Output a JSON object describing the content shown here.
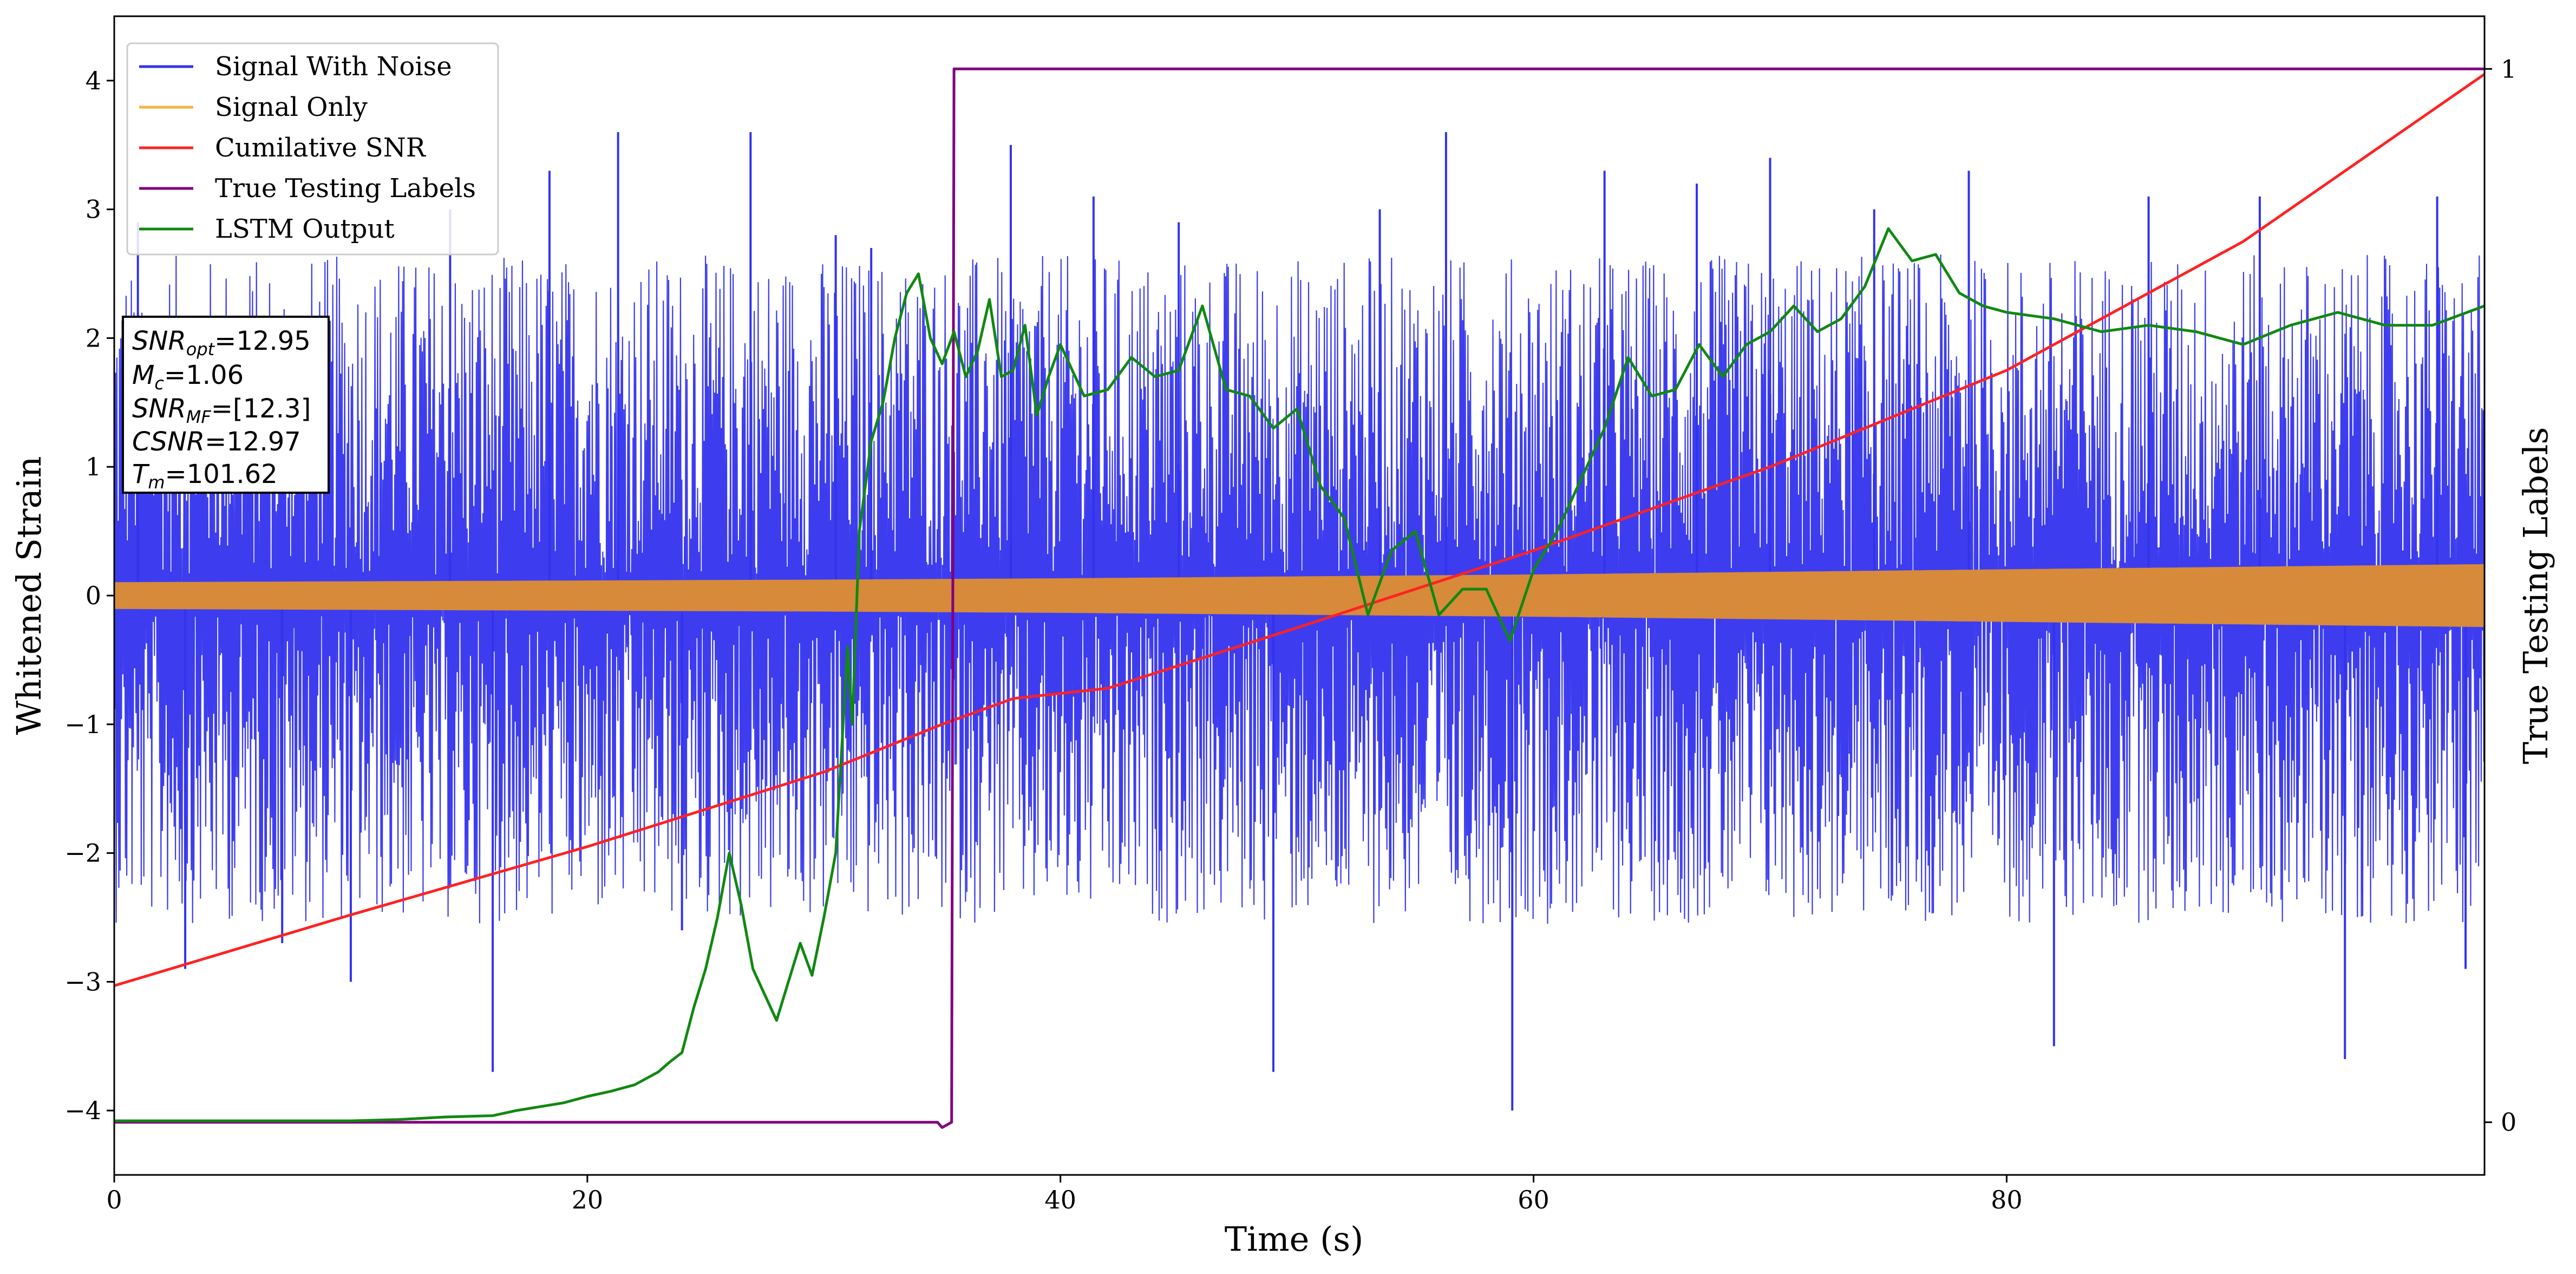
{
  "chart_data": {
    "type": "line",
    "xlabel": "Time (s)",
    "ylabel": "Whitened Strain",
    "y2label": "True Testing Labels",
    "xlim": [
      0,
      100.2
    ],
    "ylim": [
      -4.5,
      4.5
    ],
    "y2lim": [
      -0.05,
      1.05
    ],
    "xticks": [
      0,
      20,
      40,
      60,
      80
    ],
    "yticks": [
      -4,
      -3,
      -2,
      -1,
      0,
      1,
      2,
      3,
      4
    ],
    "y2ticks": [
      0,
      1
    ],
    "grid": false,
    "legend_placement": "top-left",
    "colors": {
      "signal_with_noise": "#3333ee",
      "signal_only": "#d68a3a",
      "cumulative_snr": "#ff2222",
      "true_labels": "#800080",
      "lstm": "#118811"
    },
    "series": [
      {
        "name": "Signal With Noise",
        "axis": "left",
        "description_band": "dense noise spanning roughly -2.5 to 2.5 with spikes to about ±3.7",
        "envelope": {
          "x": [
            0,
            100.2
          ],
          "lower": [
            -2.4,
            -2.4
          ],
          "upper": [
            2.5,
            2.5
          ]
        },
        "spikes": [
          [
            1.0,
            2.9
          ],
          [
            3.0,
            -2.9
          ],
          [
            7.1,
            -2.7
          ],
          [
            10.0,
            -3.0
          ],
          [
            14.2,
            3.0
          ],
          [
            16.0,
            -3.7
          ],
          [
            18.4,
            3.3
          ],
          [
            21.3,
            3.6
          ],
          [
            24.0,
            -2.6
          ],
          [
            26.9,
            3.6
          ],
          [
            30.5,
            2.8
          ],
          [
            32.0,
            2.7
          ],
          [
            37.9,
            3.5
          ],
          [
            41.4,
            3.1
          ],
          [
            45.0,
            2.9
          ],
          [
            49.0,
            -3.7
          ],
          [
            53.5,
            3.0
          ],
          [
            56.3,
            3.6
          ],
          [
            59.1,
            -4.0
          ],
          [
            63.0,
            3.3
          ],
          [
            66.9,
            3.2
          ],
          [
            70.0,
            3.4
          ],
          [
            74.4,
            3.0
          ],
          [
            78.4,
            3.3
          ],
          [
            82.0,
            -3.5
          ],
          [
            86.0,
            3.1
          ],
          [
            90.7,
            3.1
          ],
          [
            94.3,
            -3.6
          ],
          [
            98.2,
            3.1
          ],
          [
            99.4,
            -2.9
          ]
        ]
      },
      {
        "name": "Signal Only",
        "axis": "left",
        "amplitude": {
          "x": [
            0,
            30,
            40,
            60,
            80,
            100.2
          ],
          "values": [
            0.1,
            0.12,
            0.13,
            0.16,
            0.2,
            0.24
          ]
        }
      },
      {
        "name": "Cumilative SNR",
        "axis": "left",
        "x": [
          0,
          10,
          20,
          30,
          35,
          38,
          42,
          50,
          60,
          70,
          80,
          90,
          100.2
        ],
        "y": [
          -3.03,
          -2.48,
          -1.95,
          -1.37,
          -1.0,
          -0.8,
          -0.72,
          -0.25,
          0.35,
          1.0,
          1.75,
          2.75,
          4.05
        ]
      },
      {
        "name": "True Testing Labels",
        "axis": "right",
        "x": [
          0,
          34.8,
          35.0,
          35.4,
          35.5,
          100.2
        ],
        "y": [
          0,
          0,
          -0.005,
          0.0,
          1.0,
          1.0
        ]
      },
      {
        "name": "LSTM Output",
        "axis": "left",
        "x": [
          0,
          10,
          12,
          14,
          16,
          17,
          19,
          20,
          21,
          22,
          23,
          23.5,
          24,
          24.5,
          25,
          25.5,
          26,
          26.5,
          27,
          27.5,
          28,
          28.5,
          29,
          29.5,
          30,
          30.5,
          31,
          31.2,
          31.5,
          32,
          32.5,
          33,
          33.5,
          34,
          34.5,
          35,
          35.5,
          36,
          36.5,
          37,
          37.5,
          38,
          38.5,
          39,
          39.5,
          40,
          41,
          42,
          43,
          44,
          45,
          46,
          47,
          48,
          49,
          50,
          51,
          52,
          53,
          54,
          55,
          56,
          57,
          58,
          59,
          60,
          61,
          62,
          63,
          64,
          65,
          66,
          67,
          68,
          69,
          70,
          71,
          72,
          73,
          74,
          75,
          76,
          77,
          78,
          79,
          80,
          82,
          84,
          86,
          88,
          90,
          92,
          94,
          96,
          98,
          100.2
        ],
        "y": [
          -4.08,
          -4.08,
          -4.07,
          -4.05,
          -4.04,
          -4.0,
          -3.94,
          -3.89,
          -3.85,
          -3.8,
          -3.7,
          -3.62,
          -3.55,
          -3.2,
          -2.9,
          -2.5,
          -2.0,
          -2.4,
          -2.9,
          -3.1,
          -3.3,
          -3.0,
          -2.7,
          -2.95,
          -2.5,
          -2.0,
          -0.4,
          -1.0,
          0.5,
          1.2,
          1.5,
          2.0,
          2.35,
          2.5,
          2.0,
          1.8,
          2.05,
          1.7,
          1.9,
          2.3,
          1.7,
          1.75,
          2.1,
          1.4,
          1.7,
          1.95,
          1.55,
          1.6,
          1.85,
          1.7,
          1.75,
          2.25,
          1.6,
          1.55,
          1.3,
          1.45,
          0.85,
          0.6,
          -0.15,
          0.35,
          0.5,
          -0.15,
          0.05,
          0.05,
          -0.35,
          0.2,
          0.5,
          0.9,
          1.3,
          1.85,
          1.55,
          1.6,
          1.95,
          1.7,
          1.95,
          2.05,
          2.25,
          2.05,
          2.15,
          2.4,
          2.85,
          2.6,
          2.65,
          2.35,
          2.25,
          2.2,
          2.15,
          2.05,
          2.1,
          2.05,
          1.95,
          2.1,
          2.2,
          2.1,
          2.1,
          2.25
        ]
      }
    ],
    "legend": [
      "Signal With Noise",
      "Signal Only",
      "Cumilative SNR",
      "True Testing Labels",
      "LSTM Output"
    ],
    "annotations": {
      "snr_opt": {
        "symbol": "SNR",
        "sub": "opt",
        "value": "=12.95"
      },
      "m_c": {
        "symbol": "M",
        "sub": "c",
        "value": "=1.06"
      },
      "snr_mf": {
        "symbol": "SNR",
        "sub": "MF",
        "value": "=[12.3]"
      },
      "csnr": {
        "symbol": "CSNR",
        "value": "=12.97"
      },
      "t_m": {
        "symbol": "T",
        "sub": "m",
        "value": "=101.62"
      }
    }
  }
}
